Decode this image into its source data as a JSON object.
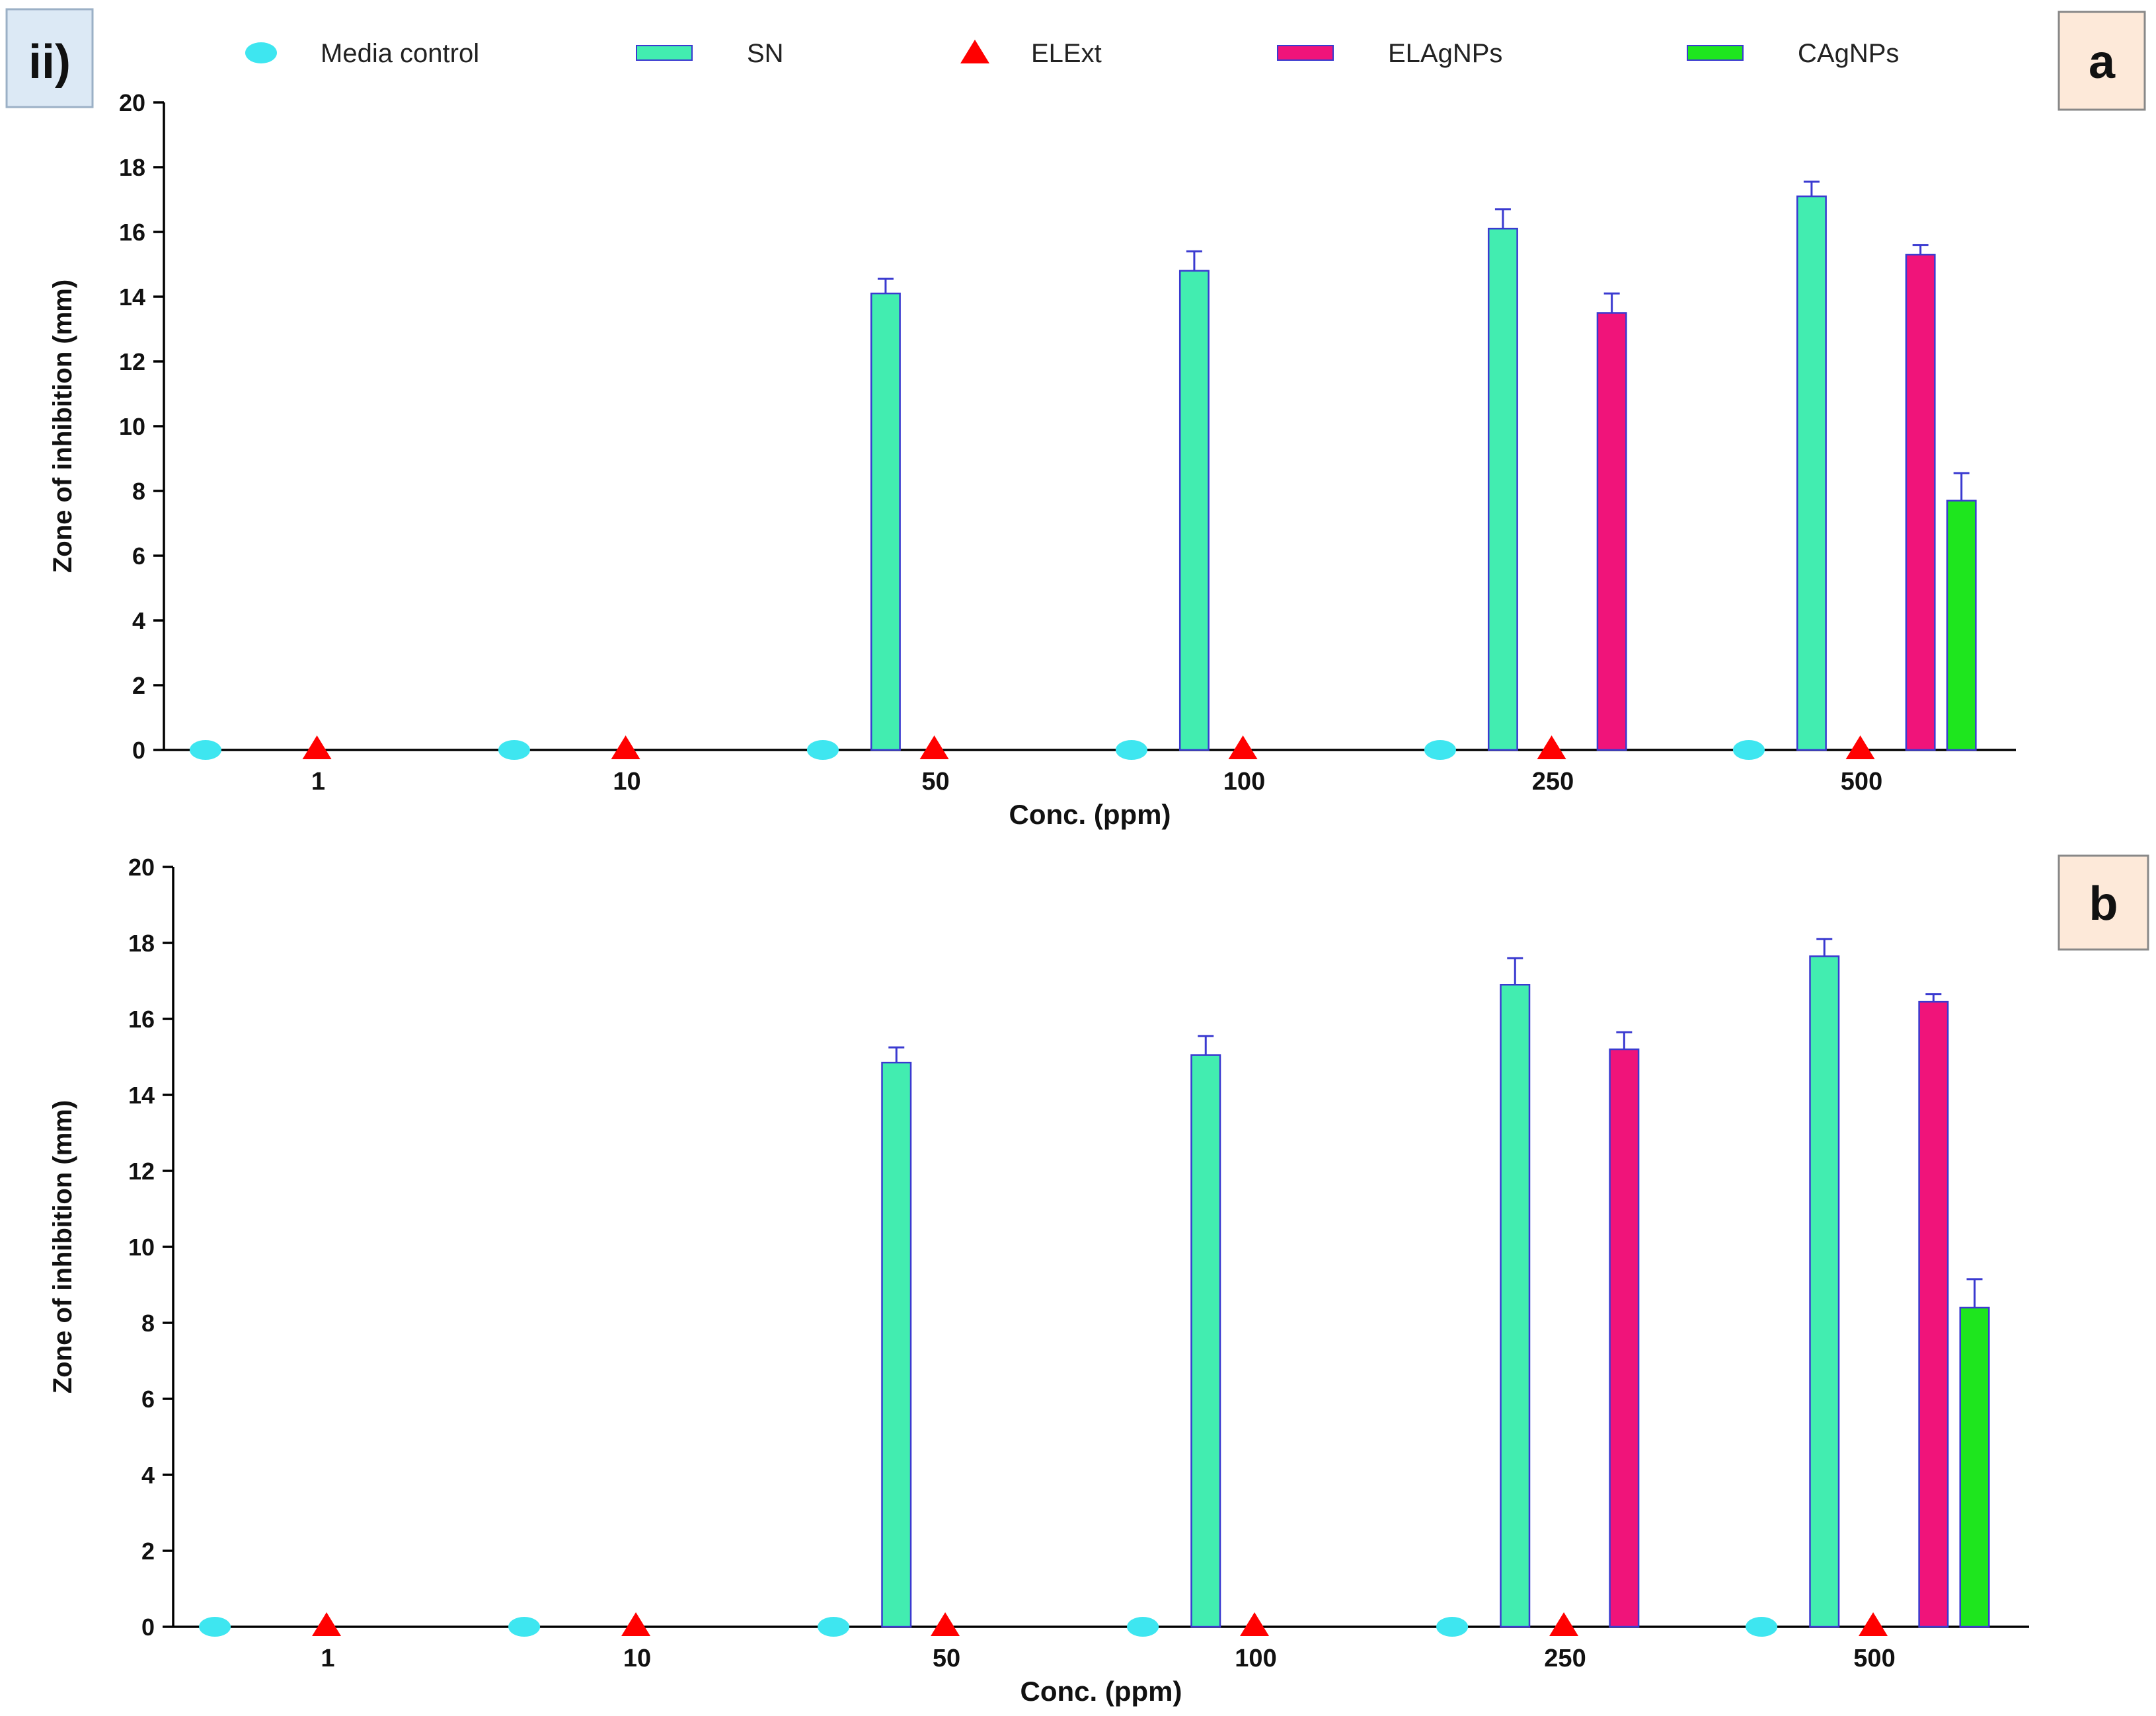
{
  "figure_label": "ii)",
  "colors": {
    "media_control": "#3ee6f0",
    "SN": "#42edb0",
    "ELExt": "#ff0000",
    "ELAgNPs": "#f0147a",
    "CAgNPs": "#1ee61e",
    "bar_outline": "#3a3ad0",
    "error_bar": "#3a3ad0",
    "label_box_fill": "#fde9d9",
    "ii_box_fill": "#dce9f5"
  },
  "legend": [
    {
      "key": "media_control",
      "label": "Media control",
      "marker": "ellipse"
    },
    {
      "key": "SN",
      "label": "SN",
      "marker": "rect"
    },
    {
      "key": "ELExt",
      "label": "ELExt",
      "marker": "triangle"
    },
    {
      "key": "ELAgNPs",
      "label": "ELAgNPs",
      "marker": "rect"
    },
    {
      "key": "CAgNPs",
      "label": "CAgNPs",
      "marker": "rect"
    }
  ],
  "chart_data": [
    {
      "panel": "a",
      "type": "bar",
      "xlabel": "Conc. (ppm)",
      "ylabel": "Zone of inhibition (mm)",
      "ylim": [
        0,
        20
      ],
      "yticks": [
        "0",
        "2",
        "4",
        "6",
        "8",
        "10",
        "12",
        "14",
        "16",
        "18",
        "20"
      ],
      "categories": [
        "1",
        "10",
        "50",
        "100",
        "250",
        "500"
      ],
      "series": [
        {
          "name": "Media control",
          "key": "media_control",
          "style": "point",
          "values": [
            0,
            0,
            0,
            0,
            0,
            0
          ]
        },
        {
          "name": "SN",
          "key": "SN",
          "style": "bar",
          "values": [
            0,
            0,
            14.1,
            14.8,
            16.1,
            17.1
          ],
          "errors": [
            0,
            0,
            0.45,
            0.6,
            0.6,
            0.45
          ]
        },
        {
          "name": "ELExt",
          "key": "ELExt",
          "style": "point",
          "values": [
            0,
            0,
            0,
            0,
            0,
            0
          ]
        },
        {
          "name": "ELAgNPs",
          "key": "ELAgNPs",
          "style": "bar",
          "values": [
            0,
            0,
            0,
            0,
            13.5,
            15.3
          ],
          "errors": [
            0,
            0,
            0,
            0,
            0.6,
            0.3
          ]
        },
        {
          "name": "CAgNPs",
          "key": "CAgNPs",
          "style": "bar",
          "values": [
            0,
            0,
            0,
            0,
            0,
            7.7
          ],
          "errors": [
            0,
            0,
            0,
            0,
            0,
            0.85
          ]
        }
      ]
    },
    {
      "panel": "b",
      "type": "bar",
      "xlabel": "Conc. (ppm)",
      "ylabel": "Zone of inhibition (mm)",
      "ylim": [
        0,
        20
      ],
      "yticks": [
        "0",
        "2",
        "4",
        "6",
        "8",
        "10",
        "12",
        "14",
        "16",
        "18",
        "20"
      ],
      "categories": [
        "1",
        "10",
        "50",
        "100",
        "250",
        "500"
      ],
      "series": [
        {
          "name": "Media control",
          "key": "media_control",
          "style": "point",
          "values": [
            0,
            0,
            0,
            0,
            0,
            0
          ]
        },
        {
          "name": "SN",
          "key": "SN",
          "style": "bar",
          "values": [
            0,
            0,
            14.85,
            15.05,
            16.9,
            17.65
          ],
          "errors": [
            0,
            0,
            0.4,
            0.5,
            0.7,
            0.45
          ]
        },
        {
          "name": "ELExt",
          "key": "ELExt",
          "style": "point",
          "values": [
            0,
            0,
            0,
            0,
            0,
            0
          ]
        },
        {
          "name": "ELAgNPs",
          "key": "ELAgNPs",
          "style": "bar",
          "values": [
            0,
            0,
            0,
            0,
            15.2,
            16.45
          ],
          "errors": [
            0,
            0,
            0,
            0,
            0.45,
            0.2
          ]
        },
        {
          "name": "CAgNPs",
          "key": "CAgNPs",
          "style": "bar",
          "values": [
            0,
            0,
            0,
            0,
            0,
            8.4
          ],
          "errors": [
            0,
            0,
            0,
            0,
            0,
            0.75
          ]
        }
      ]
    }
  ]
}
